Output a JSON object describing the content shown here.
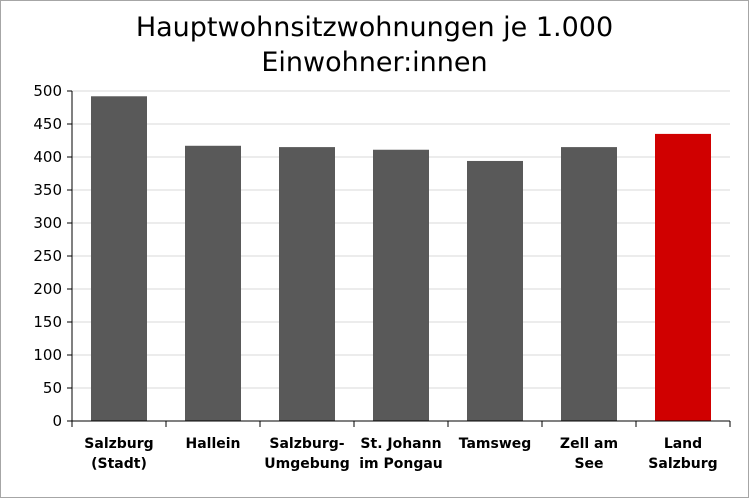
{
  "chart_data": {
    "type": "bar",
    "title_lines": [
      "Hauptwohnsitzwohnungen je 1.000",
      "Einwohner:innen"
    ],
    "categories": [
      [
        "Salzburg",
        "(Stadt)"
      ],
      [
        "Hallein"
      ],
      [
        "Salzburg-",
        "Umgebung"
      ],
      [
        "St. Johann",
        "im Pongau"
      ],
      [
        "Tamsweg"
      ],
      [
        "Zell am",
        "See"
      ],
      [
        "Land",
        "Salzburg"
      ]
    ],
    "values": [
      492,
      417,
      415,
      411,
      394,
      415,
      435
    ],
    "ylim": [
      0,
      500
    ],
    "yticks": [
      0,
      50,
      100,
      150,
      200,
      250,
      300,
      350,
      400,
      450,
      500
    ],
    "grid": true,
    "colors": {
      "bar": "#595959",
      "highlight": "#d00000",
      "grid": "#d9d9d9",
      "axis": "#000000"
    },
    "highlight_index": 6
  }
}
